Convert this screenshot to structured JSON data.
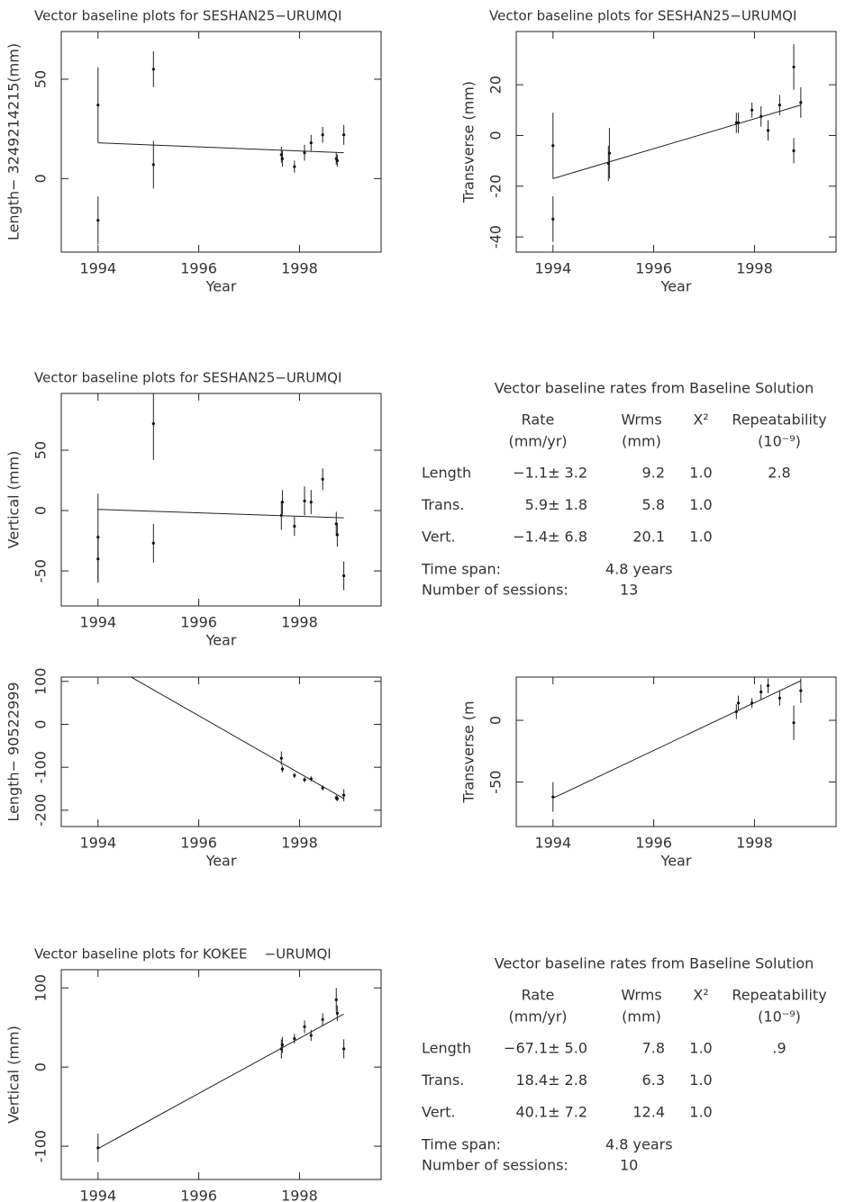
{
  "chart_data": [
    {
      "type": "scatter",
      "title": "Vector baseline plots for SESHAN25−URUMQI",
      "xlabel": "Year",
      "ylabel": "Length− 3249214215(mm)",
      "xlim": [
        1993.27,
        1999.62
      ],
      "ylim": [
        -37,
        74
      ],
      "xticks": [
        1994,
        1996,
        1998
      ],
      "yticks": [
        0,
        50
      ],
      "x": [
        1994.0,
        1994.0,
        1995.1,
        1995.1,
        1997.64,
        1997.66,
        1997.9,
        1998.1,
        1998.23,
        1998.46,
        1998.73,
        1998.75,
        1998.88
      ],
      "values": [
        37,
        -21,
        55,
        7,
        12,
        10,
        6,
        13,
        18,
        22,
        10,
        9,
        22
      ],
      "errors": [
        19,
        12,
        9,
        12,
        4,
        4,
        3,
        4,
        4,
        4,
        3,
        3,
        5
      ],
      "fit": {
        "x": [
          1994.0,
          1998.88
        ],
        "values": [
          18,
          13
        ]
      }
    },
    {
      "type": "scatter",
      "title": "Vector baseline plots for SESHAN25−URUMQI",
      "xlabel": "Year",
      "ylabel": "Transverse (mm)",
      "xlim": [
        1993.27,
        1999.62
      ],
      "ylim": [
        -46,
        41
      ],
      "xticks": [
        1994,
        1996,
        1998
      ],
      "yticks": [
        -40,
        -20,
        0,
        20
      ],
      "x": [
        1994.0,
        1994.0,
        1995.1,
        1995.12,
        1997.64,
        1997.68,
        1997.95,
        1998.13,
        1998.27,
        1998.5,
        1998.78,
        1998.78,
        1998.92
      ],
      "values": [
        -4,
        -33,
        -11,
        -7,
        5,
        5,
        10,
        7.5,
        2,
        12,
        27,
        -6,
        13
      ],
      "errors": [
        13,
        9,
        7,
        10,
        4,
        4,
        3,
        4,
        4,
        4,
        9,
        5,
        6
      ],
      "fit": {
        "x": [
          1994.0,
          1998.92
        ],
        "values": [
          -17,
          12
        ]
      }
    },
    {
      "type": "scatter",
      "title": "Vector baseline plots for SESHAN25−URUMQI",
      "xlabel": "Year",
      "ylabel": "Vertical (mm)",
      "xlim": [
        1993.27,
        1999.62
      ],
      "ylim": [
        -79,
        97
      ],
      "xticks": [
        1994,
        1996,
        1998
      ],
      "yticks": [
        -50,
        0,
        50
      ],
      "x": [
        1994.0,
        1994.0,
        1995.1,
        1995.1,
        1997.64,
        1997.66,
        1997.9,
        1998.1,
        1998.23,
        1998.46,
        1998.73,
        1998.75,
        1998.88
      ],
      "values": [
        -22,
        -40,
        72,
        -27,
        -4,
        7,
        -13,
        8,
        7,
        26,
        -11,
        -20,
        -54
      ],
      "errors": [
        36,
        20,
        30,
        16,
        12,
        10,
        8,
        12,
        10,
        9,
        10,
        10,
        12
      ],
      "fit": {
        "x": [
          1994.0,
          1998.88
        ],
        "values": [
          1,
          -6
        ]
      }
    },
    {
      "type": "scatter",
      "xlabel": "Year",
      "ylabel": "Length− 90522999",
      "xlim": [
        1993.27,
        1999.62
      ],
      "ylim": [
        -238,
        110
      ],
      "xticks": [
        1994,
        1996,
        1998
      ],
      "yticks": [
        -200,
        -100,
        0,
        100
      ],
      "x": [
        1997.64,
        1997.66,
        1997.9,
        1998.1,
        1998.23,
        1998.46,
        1998.73,
        1998.75,
        1998.88
      ],
      "values": [
        -79,
        -104,
        -119,
        -129,
        -127,
        -148,
        -171,
        -173,
        -165
      ],
      "errors": [
        16,
        8,
        6,
        6,
        6,
        6,
        6,
        6,
        14
      ],
      "fit": {
        "x": [
          1994.0,
          1998.88
        ],
        "values": [
          154,
          -173
        ]
      }
    },
    {
      "type": "scatter",
      "xlabel": "Year",
      "ylabel": "Transverse (m",
      "xlim": [
        1993.27,
        1999.62
      ],
      "ylim": [
        -86,
        35
      ],
      "xticks": [
        1994,
        1996,
        1998
      ],
      "yticks": [
        -50,
        0
      ],
      "x": [
        1994.0,
        1997.64,
        1997.68,
        1997.95,
        1998.13,
        1998.27,
        1998.5,
        1998.78,
        1998.92
      ],
      "values": [
        -62,
        7,
        14,
        14,
        23,
        28,
        18,
        -2,
        24
      ],
      "errors": [
        12,
        6,
        6,
        4,
        6,
        6,
        6,
        14,
        10
      ],
      "fit": {
        "x": [
          1994.0,
          1998.92
        ],
        "values": [
          -63,
          32
        ]
      }
    },
    {
      "type": "scatter",
      "title": "Vector baseline plots for KOKEE    −URUMQI",
      "xlabel": "Year",
      "ylabel": "Vertical (mm)",
      "xlim": [
        1993.27,
        1999.62
      ],
      "ylim": [
        -142,
        123
      ],
      "xticks": [
        1994,
        1996,
        1998
      ],
      "yticks": [
        -100,
        0,
        100
      ],
      "x": [
        1994.0,
        1997.64,
        1997.66,
        1997.9,
        1998.1,
        1998.23,
        1998.46,
        1998.73,
        1998.75,
        1998.88
      ],
      "values": [
        -102,
        23,
        28,
        36,
        51,
        40,
        60,
        85,
        68,
        23
      ],
      "errors": [
        18,
        12,
        10,
        6,
        8,
        7,
        8,
        15,
        10,
        12
      ],
      "fit": {
        "x": [
          1994.0,
          1998.88
        ],
        "values": [
          -103,
          67
        ]
      }
    }
  ],
  "tables": [
    {
      "title": "Vector baseline rates from Baseline Solution",
      "headers": [
        [
          "Rate",
          "(mm/yr)"
        ],
        [
          "Wrms",
          "(mm)"
        ],
        [
          "X²"
        ],
        [
          "Repeatability",
          "(10⁻⁹)"
        ]
      ],
      "rows": [
        [
          "Length",
          "−1.1± 3.2",
          "9.2",
          "1.0",
          "2.8"
        ],
        [
          "Trans.",
          "5.9± 1.8",
          "5.8",
          "1.0"
        ],
        [
          "Vert.",
          "−1.4± 6.8",
          "20.1",
          "1.0"
        ]
      ],
      "time_span": [
        "Time span:",
        "4.8 years"
      ],
      "sessions": [
        "Number of sessions:",
        "13"
      ]
    },
    {
      "title": "Vector baseline rates from Baseline Solution",
      "headers": [
        [
          "Rate",
          "(mm/yr)"
        ],
        [
          "Wrms",
          "(mm)"
        ],
        [
          "X²"
        ],
        [
          "Repeatability",
          "(10⁻⁹)"
        ]
      ],
      "rows": [
        [
          "Length",
          "−67.1± 5.0",
          "7.8",
          "1.0",
          ".9"
        ],
        [
          "Trans.",
          "18.4± 2.8",
          "6.3",
          "1.0"
        ],
        [
          "Vert.",
          "40.1± 7.2",
          "12.4",
          "1.0"
        ]
      ],
      "time_span": [
        "Time span:",
        "4.8 years"
      ],
      "sessions": [
        "Number of sessions:",
        "10"
      ]
    }
  ]
}
